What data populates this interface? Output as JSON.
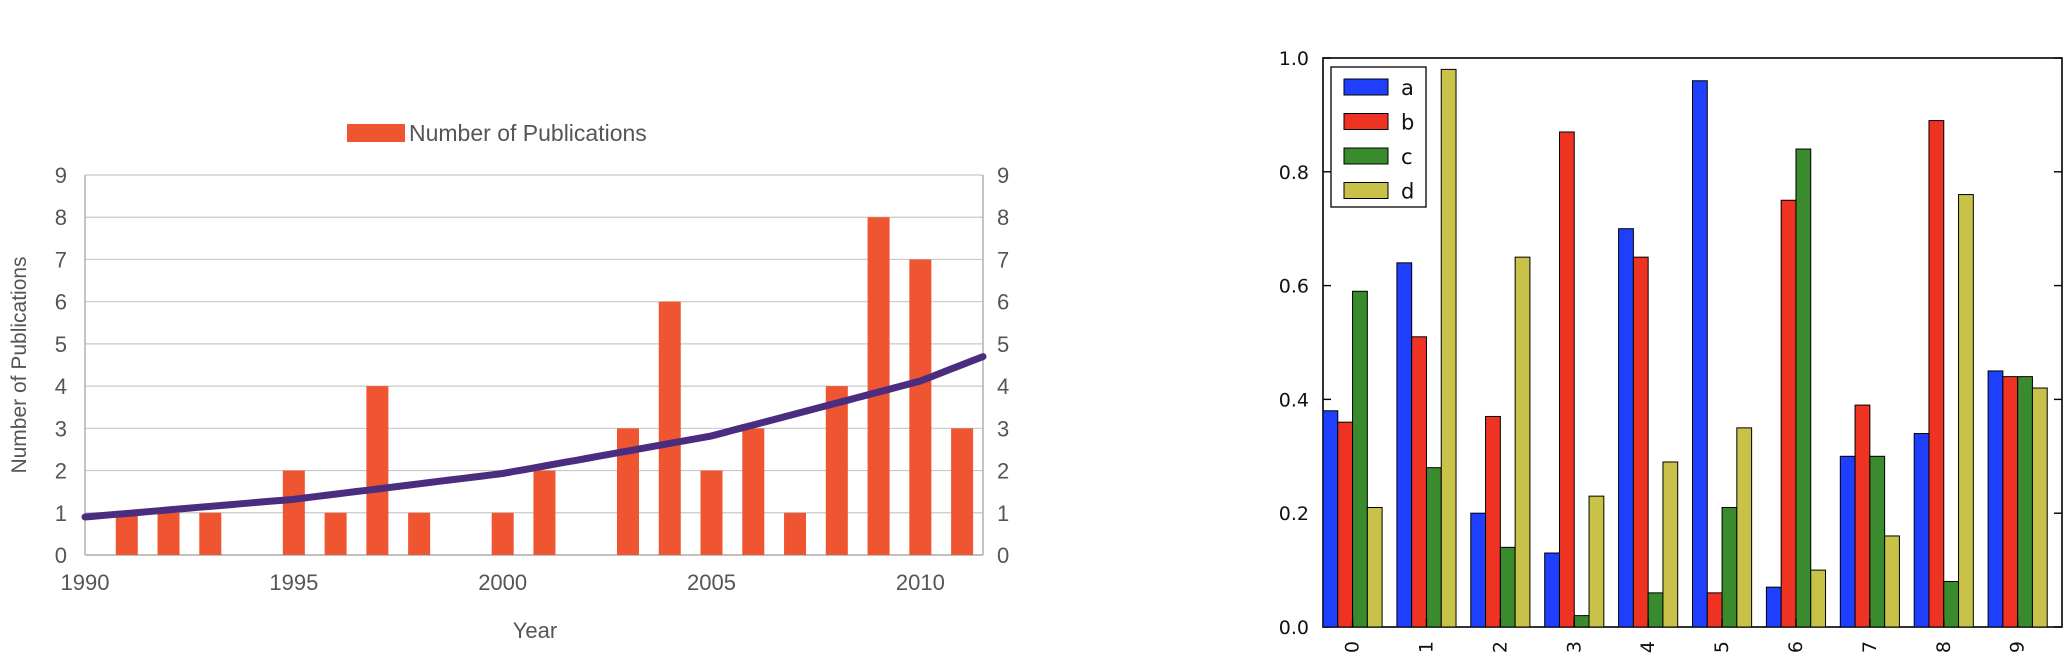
{
  "chart_data": [
    {
      "type": "bar",
      "title": "",
      "xlabel": "Year",
      "ylabel": "Number of Publications",
      "xlim": [
        1990,
        2011.5
      ],
      "ylim": [
        0,
        9
      ],
      "xticks": [
        "1990",
        "1995",
        "2000",
        "2005",
        "2010"
      ],
      "yticks": [
        "0",
        "1",
        "2",
        "3",
        "4",
        "5",
        "6",
        "7",
        "8",
        "9"
      ],
      "legend": "top-center",
      "grid": true,
      "colors": {
        "bar": "#ee5530",
        "trend": "#4b2d7f"
      },
      "series": [
        {
          "name": "Number of Publications",
          "x": [
            1991,
            1992,
            1993,
            1995,
            1996,
            1997,
            1998,
            2000,
            2001,
            2003,
            2004,
            2005,
            2006,
            2007,
            2008,
            2009,
            2010,
            2011
          ],
          "values": [
            1,
            1,
            1,
            2,
            1,
            4,
            1,
            1,
            2,
            3,
            6,
            2,
            3,
            1,
            4,
            8,
            7,
            3
          ]
        }
      ],
      "trend_line": {
        "x": [
          1990,
          1995,
          2000,
          2005,
          2010,
          2011.5
        ],
        "values": [
          0.9,
          1.32,
          1.93,
          2.82,
          4.12,
          4.7
        ]
      }
    },
    {
      "type": "bar",
      "title": "",
      "xlabel": "",
      "ylabel": "",
      "categories": [
        "0",
        "1",
        "2",
        "3",
        "4",
        "5",
        "6",
        "7",
        "8",
        "9"
      ],
      "ylim": [
        0,
        1.0
      ],
      "yticks": [
        "0.0",
        "0.2",
        "0.4",
        "0.6",
        "0.8",
        "1.0"
      ],
      "legend": "top-left",
      "grid": false,
      "series": [
        {
          "name": "a",
          "color": "#1f3fff",
          "values": [
            0.38,
            0.64,
            0.2,
            0.13,
            0.7,
            0.96,
            0.07,
            0.3,
            0.34,
            0.45
          ]
        },
        {
          "name": "b",
          "color": "#ee3322",
          "values": [
            0.36,
            0.51,
            0.37,
            0.87,
            0.65,
            0.06,
            0.75,
            0.39,
            0.89,
            0.44
          ]
        },
        {
          "name": "c",
          "color": "#3a8a2e",
          "values": [
            0.59,
            0.28,
            0.14,
            0.02,
            0.06,
            0.21,
            0.84,
            0.3,
            0.08,
            0.44
          ]
        },
        {
          "name": "d",
          "color": "#c8c248",
          "values": [
            0.21,
            0.98,
            0.65,
            0.23,
            0.29,
            0.35,
            0.1,
            0.16,
            0.76,
            0.42
          ]
        }
      ]
    }
  ]
}
